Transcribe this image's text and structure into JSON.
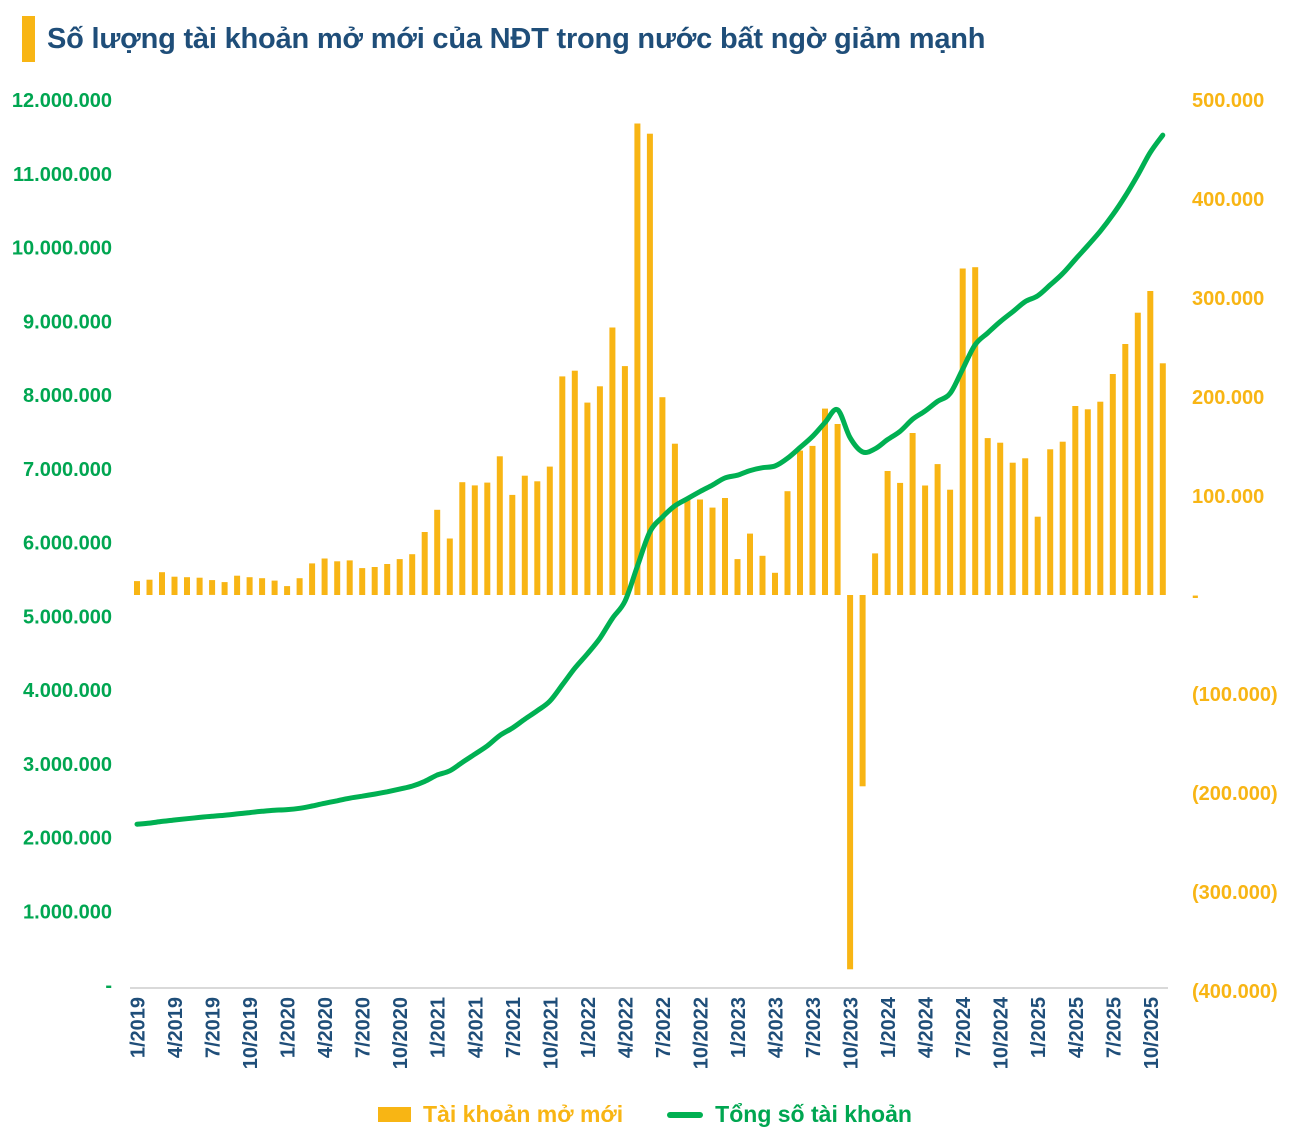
{
  "title": {
    "text": "Số lượng tài khoản mở mới của NĐT trong nước bất ngờ giảm mạnh"
  },
  "legend": [
    {
      "label": "Tài khoản mở mới",
      "type": "bar"
    },
    {
      "label": "Tổng số tài khoản",
      "type": "line"
    }
  ],
  "colors": {
    "gold": "#F8B514",
    "green_line": "#00B052",
    "green_label": "#00A651",
    "navy": "#1F4E79",
    "axis_line": "#D9D9D9"
  },
  "chart_data": {
    "type": "combo-bar-line",
    "title": "Số lượng tài khoản mở mới của NĐT trong nước bất ngờ giảm mạnh",
    "grid": false,
    "legend_position": "bottom",
    "categories": [
      "1/2019",
      "2/2019",
      "3/2019",
      "4/2019",
      "5/2019",
      "6/2019",
      "7/2019",
      "8/2019",
      "9/2019",
      "10/2019",
      "11/2019",
      "12/2019",
      "1/2020",
      "2/2020",
      "3/2020",
      "4/2020",
      "5/2020",
      "6/2020",
      "7/2020",
      "8/2020",
      "9/2020",
      "10/2020",
      "11/2020",
      "12/2020",
      "1/2021",
      "2/2021",
      "3/2021",
      "4/2021",
      "5/2021",
      "6/2021",
      "7/2021",
      "8/2021",
      "9/2021",
      "10/2021",
      "11/2021",
      "12/2021",
      "1/2022",
      "2/2022",
      "3/2022",
      "4/2022",
      "5/2022",
      "6/2022",
      "7/2022",
      "8/2022",
      "9/2022",
      "10/2022",
      "11/2022",
      "12/2022",
      "1/2023",
      "2/2023",
      "3/2023",
      "4/2023",
      "5/2023",
      "6/2023",
      "7/2023",
      "8/2023",
      "9/2023",
      "10/2023",
      "11/2023",
      "12/2023",
      "1/2024",
      "2/2024",
      "3/2024",
      "4/2024",
      "5/2024",
      "6/2024",
      "7/2024",
      "8/2024",
      "9/2024",
      "10/2024",
      "11/2024",
      "12/2024",
      "1/2025",
      "2/2025",
      "3/2025",
      "4/2025",
      "5/2025",
      "6/2025",
      "7/2025",
      "8/2025",
      "9/2025",
      "10/2025",
      "11/2025"
    ],
    "x_tick_labels": [
      "1/2019",
      "4/2019",
      "7/2019",
      "10/2019",
      "1/2020",
      "4/2020",
      "7/2020",
      "10/2020",
      "1/2021",
      "4/2021",
      "7/2021",
      "10/2021",
      "1/2022",
      "4/2022",
      "7/2022",
      "10/2022",
      "1/2023",
      "4/2023",
      "7/2023",
      "10/2023",
      "1/2024",
      "4/2024",
      "7/2024",
      "10/2024",
      "1/2025",
      "4/2025",
      "7/2025",
      "10/2025"
    ],
    "x_tick_every": 3,
    "series": [
      {
        "name": "Tài khoản mở mới",
        "type": "bar",
        "axis": "right",
        "color": "#F8B514",
        "values": [
          14000,
          15500,
          23000,
          18500,
          18000,
          17500,
          15000,
          13000,
          19500,
          18000,
          17000,
          14500,
          9000,
          17000,
          31900,
          36900,
          34000,
          35000,
          27200,
          28300,
          31300,
          36300,
          41200,
          63600,
          86100,
          57100,
          113900,
          110700,
          113500,
          140100,
          101100,
          120500,
          114800,
          129700,
          220800,
          226600,
          194300,
          210800,
          270200,
          231200,
          476300,
          466000,
          199800,
          152800,
          96300,
          96500,
          88300,
          98000,
          36300,
          62000,
          39600,
          22400,
          104800,
          145900,
          150600,
          188300,
          172700,
          -378100,
          -193200,
          42000,
          125300,
          113200,
          163600,
          110600,
          132200,
          106400,
          329800,
          331100,
          158500,
          153800,
          133600,
          138100,
          79100,
          147200,
          154800,
          190900,
          187600,
          195300,
          223200,
          253500,
          285200,
          307100,
          234000
        ]
      },
      {
        "name": "Tổng số tài khoản",
        "type": "line",
        "axis": "left",
        "color": "#00B052",
        "values": [
          2180000,
          2195500,
          2218500,
          2237000,
          2255000,
          2272500,
          2287500,
          2300500,
          2320000,
          2338000,
          2355000,
          2369500,
          2378500,
          2395500,
          2427400,
          2464300,
          2498300,
          2533300,
          2560500,
          2588800,
          2620100,
          2656400,
          2697600,
          2761200,
          2847300,
          2904400,
          3018300,
          3129000,
          3242500,
          3382600,
          3483700,
          3604200,
          3719000,
          3848700,
          4069500,
          4296100,
          4490400,
          4701200,
          4971400,
          5202600,
          5678900,
          6144900,
          6344700,
          6497500,
          6593800,
          6690300,
          6778600,
          6876600,
          6912900,
          6974900,
          7014500,
          7036900,
          7141700,
          7287600,
          7438200,
          7626500,
          7799200,
          7421100,
          7227900,
          7269900,
          7395200,
          7508400,
          7672000,
          7782600,
          7914800,
          8021200,
          8351000,
          8682100,
          8840600,
          8994400,
          9128000,
          9266100,
          9345200,
          9492400,
          9647200,
          9838100,
          10025700,
          10221000,
          10444200,
          10697700,
          10982900,
          11290000,
          11524000
        ]
      }
    ],
    "left_axis": {
      "min": 0,
      "max": 12000000,
      "step": 1000000,
      "color": "#00A651",
      "tick_values": [
        12000000,
        11000000,
        10000000,
        9000000,
        8000000,
        7000000,
        6000000,
        5000000,
        4000000,
        3000000,
        2000000,
        1000000,
        0
      ],
      "tick_labels": [
        "12.000.000",
        "11.000.000",
        "10.000.000",
        "9.000.000",
        "8.000.000",
        "7.000.000",
        "6.000.000",
        "5.000.000",
        "4.000.000",
        "3.000.000",
        "2.000.000",
        "1.000.000",
        "-"
      ]
    },
    "right_axis": {
      "min": -400000,
      "max": 500000,
      "step": 100000,
      "color": "#F8B514",
      "tick_values": [
        500000,
        400000,
        300000,
        200000,
        100000,
        0,
        -100000,
        -200000,
        -300000,
        -400000
      ],
      "tick_labels": [
        "500.000",
        "400.000",
        "300.000",
        "200.000",
        "100.000",
        "-",
        "(100.000)",
        "(200.000)",
        "(300.000)",
        "(400.000)"
      ]
    }
  }
}
